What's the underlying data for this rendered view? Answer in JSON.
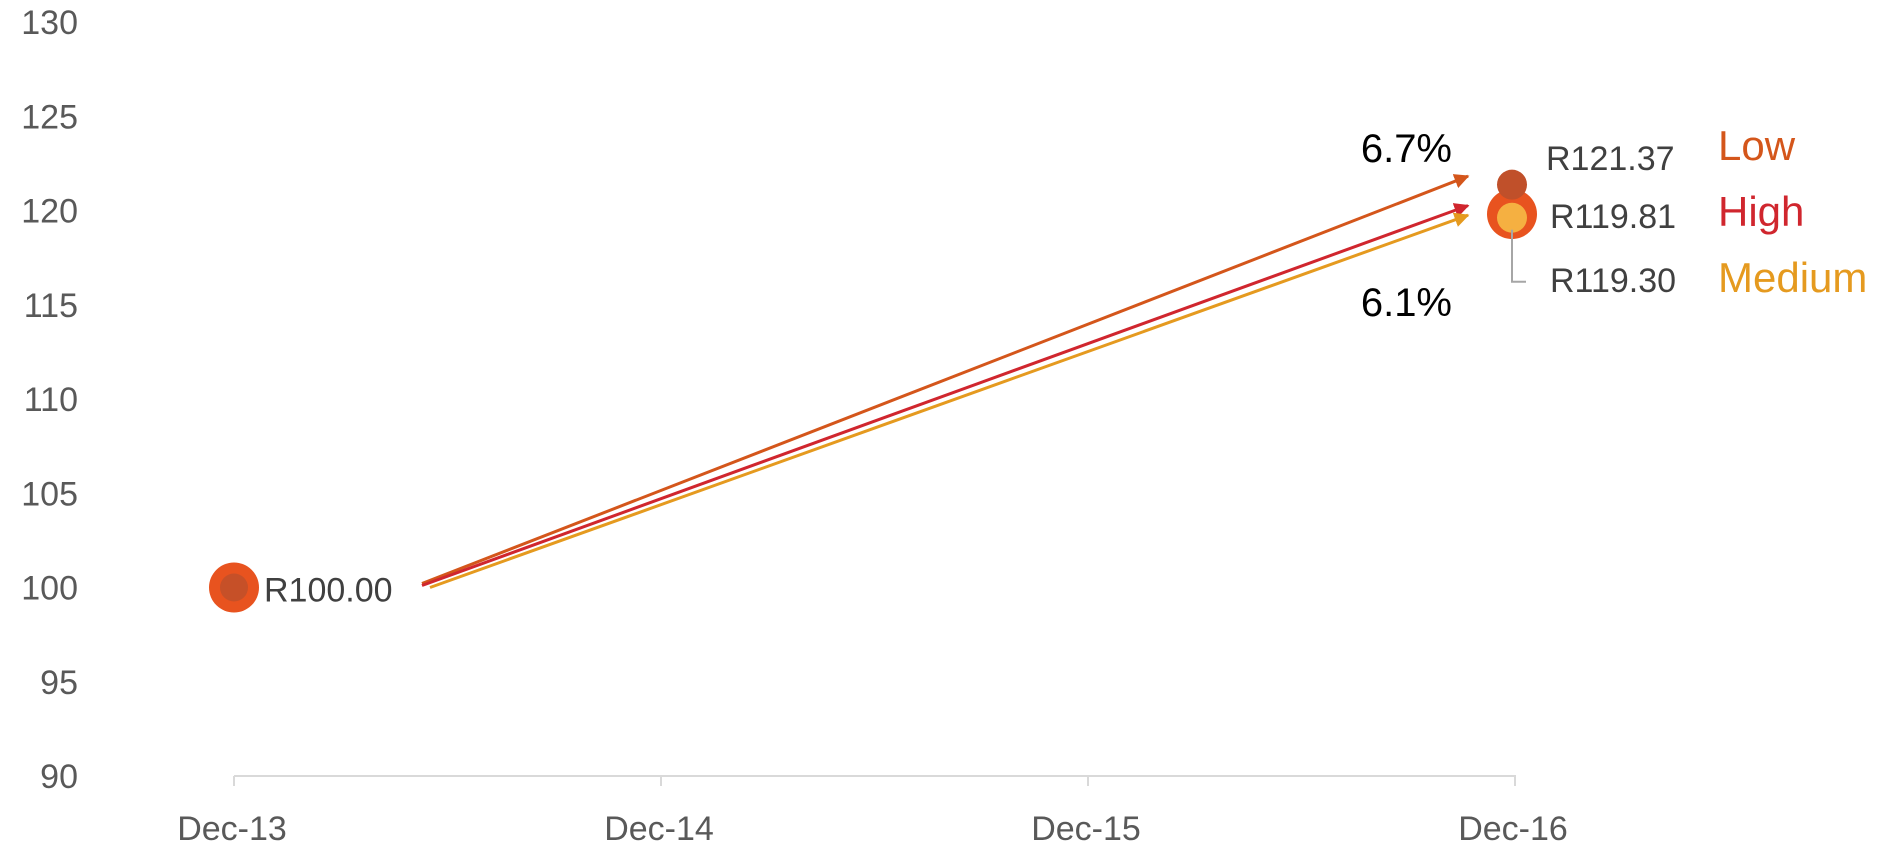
{
  "chart_data": {
    "type": "scatter",
    "x_categories": [
      "Dec-13",
      "Dec-14",
      "Dec-15",
      "Dec-16"
    ],
    "y_ticks": [
      90,
      95,
      100,
      105,
      110,
      115,
      120,
      125,
      130
    ],
    "ylim": [
      90,
      130
    ],
    "grid": false,
    "legend_position": "right",
    "start_point": {
      "x": "Dec-13",
      "y": 100.0,
      "label": "R100.00",
      "color": "#E8531F",
      "inner_color": "#C0502A"
    },
    "series": [
      {
        "name": "Low",
        "start": {
          "x": "Dec-13",
          "y": 100.0
        },
        "end": {
          "x": "Dec-16",
          "y": 121.37
        },
        "end_label": "R121.37",
        "color": "#D4561B"
      },
      {
        "name": "High",
        "start": {
          "x": "Dec-13",
          "y": 100.0
        },
        "end": {
          "x": "Dec-16",
          "y": 119.81
        },
        "end_label": "R119.81",
        "color": "#D0262E"
      },
      {
        "name": "Medium",
        "start": {
          "x": "Dec-13",
          "y": 100.0
        },
        "end": {
          "x": "Dec-16",
          "y": 119.3
        },
        "end_label": "R119.30",
        "color": "#E59A1F"
      }
    ],
    "annotations": [
      {
        "text": "6.7%",
        "applies_to": "Low"
      },
      {
        "text": "6.1%",
        "applies_to": "Medium"
      }
    ],
    "marker_colors": {
      "Low": "#C0502A",
      "High": "#E8531F",
      "Medium": "#F5B041"
    }
  }
}
